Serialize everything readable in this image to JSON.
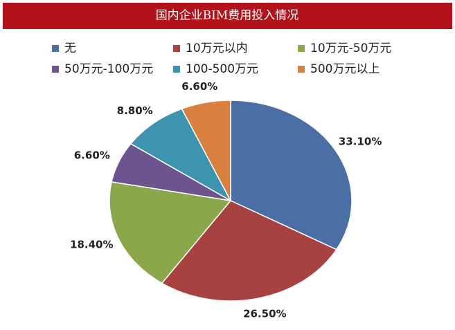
{
  "chart_data": {
    "type": "pie",
    "title": "国内企业BIM费用投入情况",
    "categories": [
      "无",
      "10万元以内",
      "10万元-50万元",
      "50万元-100万元",
      "100-500万元",
      "500万元以上"
    ],
    "values": [
      33.1,
      26.5,
      18.4,
      6.6,
      8.8,
      6.6
    ],
    "value_labels": [
      "33.10%",
      "26.50%",
      "18.40%",
      "6.60%",
      "8.80%",
      "6.60%"
    ],
    "colors": [
      "#4a6fa5",
      "#a84240",
      "#8aa84a",
      "#6e548f",
      "#3d94ae",
      "#d9803e"
    ]
  }
}
